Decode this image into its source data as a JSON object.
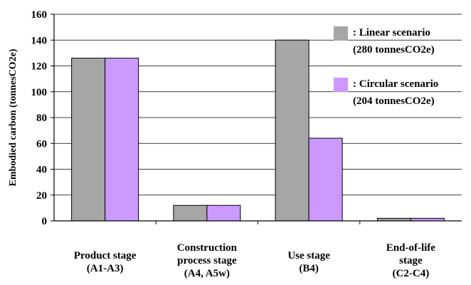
{
  "chart_data": {
    "type": "bar",
    "title": "",
    "xlabel": "",
    "ylabel": "Embodied carbon (tonnesCO2e)",
    "ylim": [
      0,
      160
    ],
    "yticks": [
      0,
      20,
      40,
      60,
      80,
      100,
      120,
      140,
      160
    ],
    "grid": true,
    "legend_position": "top-right",
    "categories": [
      [
        "Product stage",
        "(A1-A3)"
      ],
      [
        "Construction",
        "process stage",
        "(A4, A5w)"
      ],
      [
        "Use stage",
        "(B4)"
      ],
      [
        "End-of-life",
        "stage",
        "(C2-C4)"
      ]
    ],
    "series": [
      {
        "name": ": Linear scenario",
        "legend_sub": "(280 tonnesCO2e)",
        "color": "#a6a6a6",
        "values": [
          126,
          12,
          140,
          2
        ]
      },
      {
        "name": ": Circular scenario",
        "legend_sub": "(204 tonnesCO2e)",
        "color": "#cc99ff",
        "values": [
          126,
          12,
          64,
          2
        ]
      }
    ]
  }
}
